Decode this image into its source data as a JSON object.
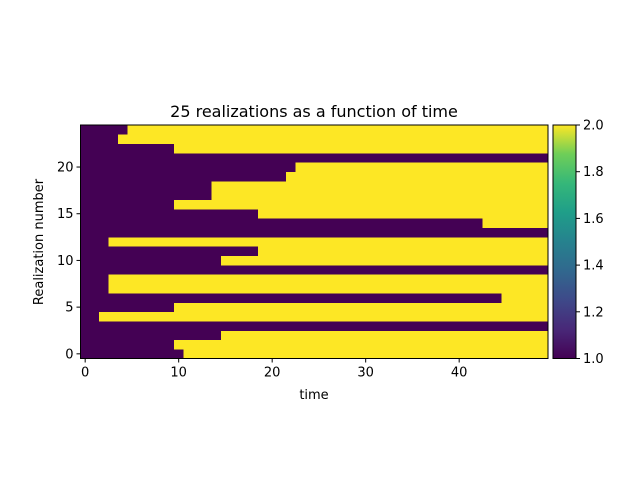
{
  "chart_data": {
    "type": "heatmap",
    "title": "25 realizations as a function of time",
    "xlabel": "time",
    "ylabel": "Realization number",
    "xlim": [
      -0.5,
      49.5
    ],
    "ylim": [
      -0.5,
      24.5
    ],
    "xticks": [
      0,
      10,
      20,
      30,
      40
    ],
    "yticks": [
      0,
      5,
      10,
      15,
      20
    ],
    "n_times": 50,
    "rows": [
      {
        "realization": 0,
        "switch_time": 11
      },
      {
        "realization": 1,
        "switch_time": 10
      },
      {
        "realization": 2,
        "switch_time": 15
      },
      {
        "realization": 3,
        "switch_time": null
      },
      {
        "realization": 4,
        "switch_time": 2
      },
      {
        "realization": 5,
        "switch_time": 10
      },
      {
        "realization": 6,
        "switch_time": 45
      },
      {
        "realization": 7,
        "switch_time": 3
      },
      {
        "realization": 8,
        "switch_time": 3
      },
      {
        "realization": 9,
        "switch_time": null
      },
      {
        "realization": 10,
        "switch_time": 15
      },
      {
        "realization": 11,
        "switch_time": 19
      },
      {
        "realization": 12,
        "switch_time": 3
      },
      {
        "realization": 13,
        "switch_time": null
      },
      {
        "realization": 14,
        "switch_time": 43
      },
      {
        "realization": 15,
        "switch_time": 19
      },
      {
        "realization": 16,
        "switch_time": 10
      },
      {
        "realization": 17,
        "switch_time": 14
      },
      {
        "realization": 18,
        "switch_time": 14
      },
      {
        "realization": 19,
        "switch_time": 22
      },
      {
        "realization": 20,
        "switch_time": 23
      },
      {
        "realization": 21,
        "switch_time": null
      },
      {
        "realization": 22,
        "switch_time": 10
      },
      {
        "realization": 23,
        "switch_time": 4
      },
      {
        "realization": 24,
        "switch_time": 5
      }
    ],
    "state_before": 1.0,
    "state_after": 2.0,
    "colormap": "viridis",
    "color_low": "#440154",
    "color_high": "#fde725",
    "colorbar": {
      "min": 1.0,
      "max": 2.0,
      "ticks": [
        "1.0",
        "1.2",
        "1.4",
        "1.6",
        "1.8",
        "2.0"
      ]
    }
  }
}
